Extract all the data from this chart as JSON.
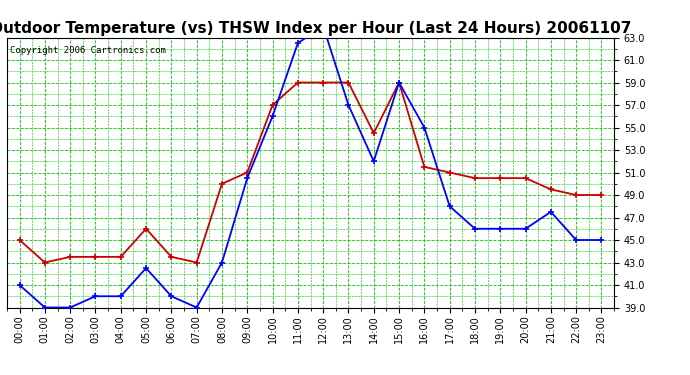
{
  "title": "Outdoor Temperature (vs) THSW Index per Hour (Last 24 Hours) 20061107",
  "copyright": "Copyright 2006 Cartronics.com",
  "hours": [
    "00:00",
    "01:00",
    "02:00",
    "03:00",
    "04:00",
    "05:00",
    "06:00",
    "07:00",
    "08:00",
    "09:00",
    "10:00",
    "11:00",
    "12:00",
    "13:00",
    "14:00",
    "15:00",
    "16:00",
    "17:00",
    "18:00",
    "19:00",
    "20:00",
    "21:00",
    "22:00",
    "23:00"
  ],
  "temp_blue": [
    41.0,
    39.0,
    39.0,
    40.0,
    40.0,
    42.5,
    40.0,
    39.0,
    43.0,
    50.5,
    56.0,
    62.5,
    64.0,
    57.0,
    52.0,
    59.0,
    55.0,
    48.0,
    46.0,
    46.0,
    46.0,
    47.5,
    45.0,
    45.0
  ],
  "thsw_red": [
    45.0,
    43.0,
    43.5,
    43.5,
    43.5,
    46.0,
    43.5,
    43.0,
    50.0,
    51.0,
    57.0,
    59.0,
    59.0,
    59.0,
    54.5,
    59.0,
    51.5,
    51.0,
    50.5,
    50.5,
    50.5,
    49.5,
    49.0,
    49.0
  ],
  "ylim_min": 39.0,
  "ylim_max": 63.0,
  "yticks": [
    39.0,
    41.0,
    43.0,
    45.0,
    47.0,
    49.0,
    51.0,
    53.0,
    55.0,
    57.0,
    59.0,
    61.0,
    63.0
  ],
  "blue_color": "#0000FF",
  "red_color": "#CC0000",
  "bg_color": "#FFFFFF",
  "grid_color": "#00CC00",
  "title_fontsize": 11,
  "tick_fontsize": 7,
  "copyright_fontsize": 6.5
}
